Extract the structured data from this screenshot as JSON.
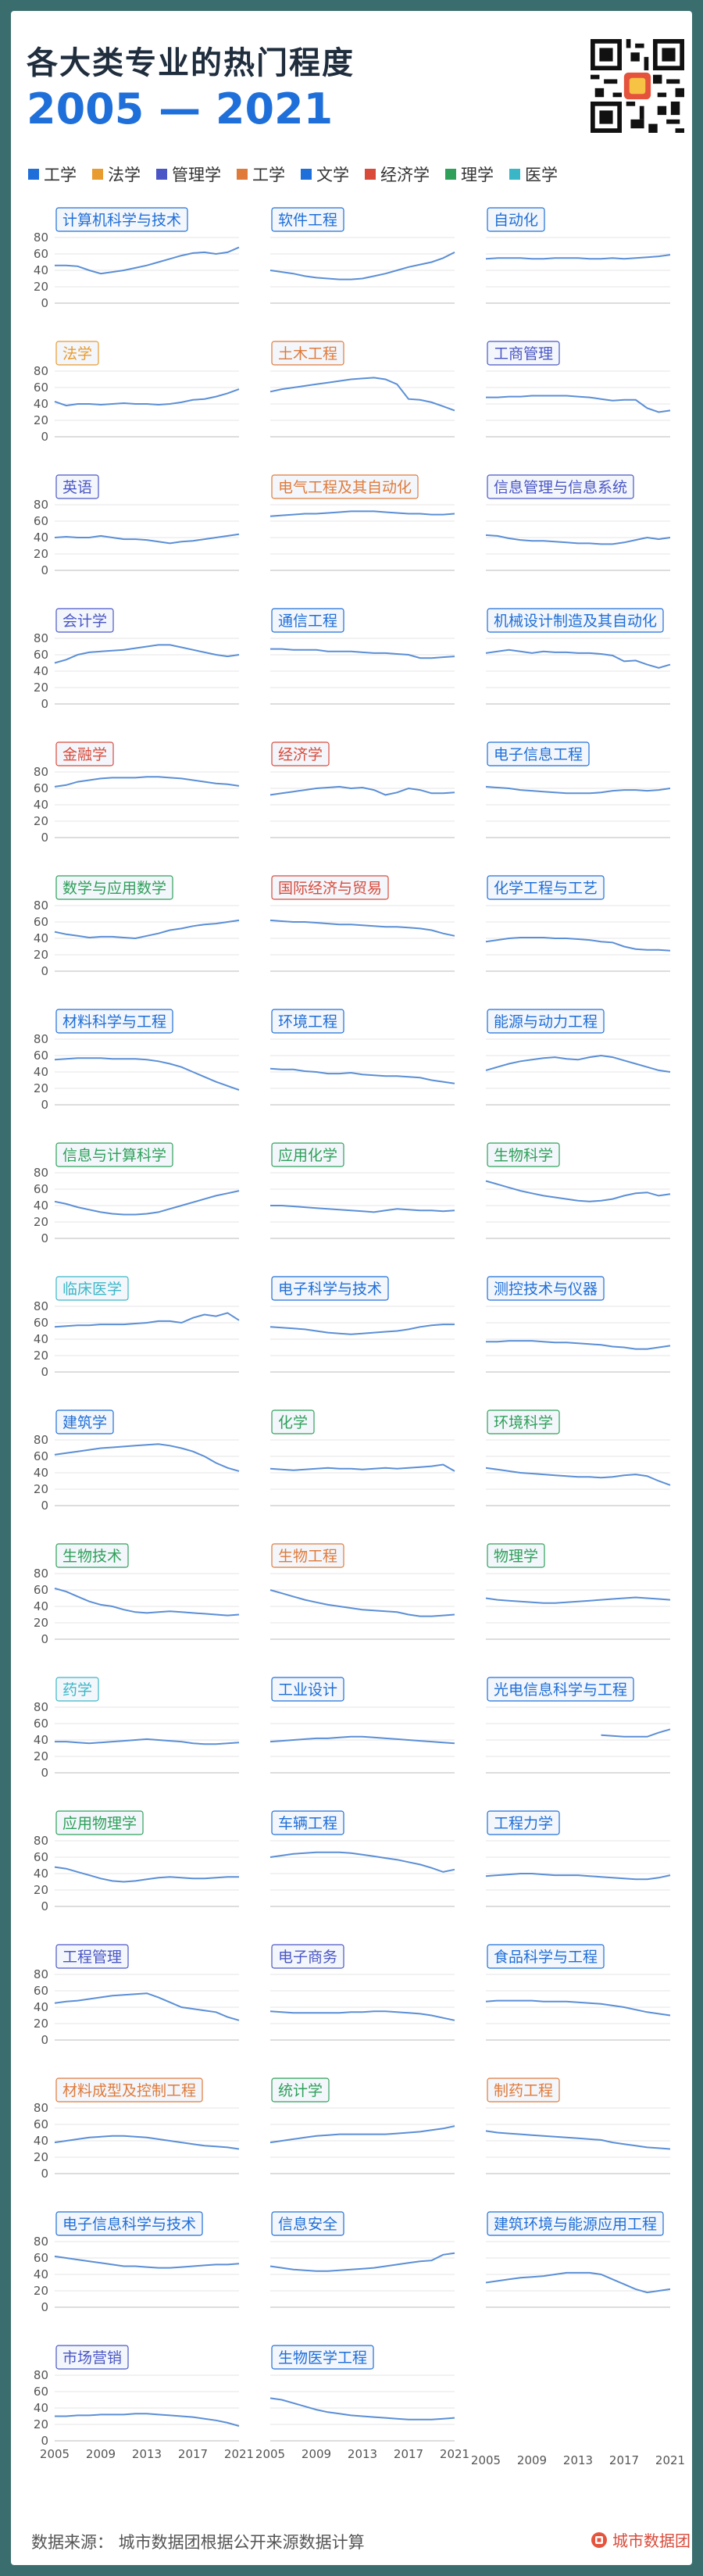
{
  "header": {
    "title": "各大类专业的热门程度",
    "years": "2005 — 2021"
  },
  "legend": [
    {
      "label": "工学",
      "color": "#1e6fd9"
    },
    {
      "label": "法学",
      "color": "#e89b2e"
    },
    {
      "label": "管理学",
      "color": "#4a56c6"
    },
    {
      "label": "工学",
      "color": "#e07a3a"
    },
    {
      "label": "文学",
      "color": "#1e6fd9"
    },
    {
      "label": "经济学",
      "color": "#d94a3a"
    },
    {
      "label": "理学",
      "color": "#2ea05a"
    },
    {
      "label": "医学",
      "color": "#3ab7c7"
    }
  ],
  "footer": {
    "source": "数据来源：  城市数据团根据公开来源数据计算",
    "brand": "城市数据团"
  },
  "chart_data": {
    "type": "line",
    "x": [
      2005,
      2006,
      2007,
      2008,
      2009,
      2010,
      2011,
      2012,
      2013,
      2014,
      2015,
      2016,
      2017,
      2018,
      2019,
      2020,
      2021
    ],
    "x_ticks": [
      "2005",
      "2009",
      "2013",
      "2017",
      "2021"
    ],
    "y_ticks": [
      "0",
      "20",
      "40",
      "60",
      "80"
    ],
    "ylim": [
      0,
      80
    ],
    "series": [
      {
        "name": "计算机科学与技术",
        "color": "#1e6fd9",
        "values": [
          46,
          46,
          45,
          40,
          36,
          38,
          40,
          43,
          46,
          50,
          54,
          58,
          61,
          62,
          60,
          62,
          68
        ]
      },
      {
        "name": "软件工程",
        "color": "#1e6fd9",
        "values": [
          40,
          38,
          36,
          33,
          31,
          30,
          29,
          29,
          30,
          33,
          36,
          40,
          44,
          47,
          50,
          55,
          62
        ]
      },
      {
        "name": "自动化",
        "color": "#1e6fd9",
        "values": [
          54,
          55,
          55,
          55,
          54,
          54,
          55,
          55,
          55,
          54,
          54,
          55,
          54,
          55,
          56,
          57,
          59
        ]
      },
      {
        "name": "法学",
        "color": "#e89b2e",
        "values": [
          43,
          38,
          40,
          40,
          39,
          40,
          41,
          40,
          40,
          39,
          40,
          42,
          45,
          46,
          49,
          53,
          58
        ]
      },
      {
        "name": "土木工程",
        "color": "#e07a3a",
        "values": [
          55,
          58,
          60,
          62,
          64,
          66,
          68,
          70,
          71,
          72,
          70,
          64,
          46,
          45,
          42,
          37,
          32
        ]
      },
      {
        "name": "工商管理",
        "color": "#4a56c6",
        "values": [
          48,
          48,
          49,
          49,
          50,
          50,
          50,
          50,
          49,
          48,
          46,
          44,
          45,
          45,
          35,
          30,
          32
        ]
      },
      {
        "name": "英语",
        "color": "#4a56c6",
        "values": [
          40,
          41,
          40,
          40,
          42,
          40,
          38,
          38,
          37,
          35,
          33,
          35,
          36,
          38,
          40,
          42,
          44
        ]
      },
      {
        "name": "电气工程及其自动化",
        "color": "#e07a3a",
        "values": [
          66,
          67,
          68,
          69,
          69,
          70,
          71,
          72,
          72,
          72,
          71,
          70,
          69,
          69,
          68,
          68,
          69
        ]
      },
      {
        "name": "信息管理与信息系统",
        "color": "#4a56c6",
        "values": [
          43,
          42,
          39,
          37,
          36,
          36,
          35,
          34,
          33,
          33,
          32,
          32,
          34,
          37,
          40,
          38,
          40
        ]
      },
      {
        "name": "会计学",
        "color": "#4a56c6",
        "values": [
          50,
          54,
          60,
          63,
          64,
          65,
          66,
          68,
          70,
          72,
          72,
          69,
          66,
          63,
          60,
          58,
          60
        ]
      },
      {
        "name": "通信工程",
        "color": "#1e6fd9",
        "values": [
          67,
          67,
          66,
          66,
          66,
          64,
          64,
          64,
          63,
          62,
          62,
          61,
          60,
          56,
          56,
          57,
          58
        ]
      },
      {
        "name": "机械设计制造及其自动化",
        "color": "#1e6fd9",
        "values": [
          62,
          64,
          66,
          64,
          62,
          64,
          63,
          63,
          62,
          62,
          61,
          59,
          52,
          53,
          48,
          44,
          48
        ]
      },
      {
        "name": "金融学",
        "color": "#d94a3a",
        "values": [
          62,
          64,
          68,
          70,
          72,
          73,
          73,
          73,
          74,
          74,
          73,
          72,
          70,
          68,
          66,
          65,
          63
        ]
      },
      {
        "name": "经济学",
        "color": "#d94a3a",
        "values": [
          52,
          54,
          56,
          58,
          60,
          61,
          62,
          60,
          61,
          58,
          52,
          55,
          60,
          58,
          54,
          54,
          55
        ]
      },
      {
        "name": "电子信息工程",
        "color": "#1e6fd9",
        "values": [
          62,
          61,
          60,
          58,
          57,
          56,
          55,
          54,
          54,
          54,
          55,
          57,
          58,
          58,
          57,
          58,
          60
        ]
      },
      {
        "name": "数学与应用数学",
        "color": "#2ea05a",
        "values": [
          48,
          45,
          43,
          41,
          42,
          42,
          41,
          40,
          43,
          46,
          50,
          52,
          55,
          57,
          58,
          60,
          62
        ]
      },
      {
        "name": "国际经济与贸易",
        "color": "#d94a3a",
        "values": [
          62,
          61,
          60,
          60,
          59,
          58,
          57,
          57,
          56,
          55,
          54,
          54,
          53,
          52,
          50,
          46,
          43
        ]
      },
      {
        "name": "化学工程与工艺",
        "color": "#1e6fd9",
        "values": [
          36,
          38,
          40,
          41,
          41,
          41,
          40,
          40,
          39,
          38,
          36,
          35,
          30,
          27,
          26,
          26,
          25
        ]
      },
      {
        "name": "材料科学与工程",
        "color": "#1e6fd9",
        "values": [
          55,
          56,
          57,
          57,
          57,
          56,
          56,
          56,
          55,
          53,
          50,
          46,
          40,
          34,
          28,
          23,
          18
        ]
      },
      {
        "name": "环境工程",
        "color": "#1e6fd9",
        "values": [
          44,
          43,
          43,
          41,
          40,
          38,
          38,
          39,
          37,
          36,
          35,
          35,
          34,
          33,
          30,
          28,
          26
        ]
      },
      {
        "name": "能源与动力工程",
        "color": "#1e6fd9",
        "values": [
          42,
          46,
          50,
          53,
          55,
          57,
          58,
          56,
          55,
          58,
          60,
          58,
          54,
          50,
          46,
          42,
          40
        ]
      },
      {
        "name": "信息与计算科学",
        "color": "#2ea05a",
        "values": [
          45,
          42,
          38,
          35,
          32,
          30,
          29,
          29,
          30,
          32,
          36,
          40,
          44,
          48,
          52,
          55,
          58
        ]
      },
      {
        "name": "应用化学",
        "color": "#2ea05a",
        "values": [
          40,
          40,
          39,
          38,
          37,
          36,
          35,
          34,
          33,
          32,
          34,
          36,
          35,
          34,
          34,
          33,
          34
        ]
      },
      {
        "name": "生物科学",
        "color": "#2ea05a",
        "values": [
          70,
          66,
          62,
          58,
          55,
          52,
          50,
          48,
          46,
          45,
          46,
          48,
          52,
          55,
          56,
          52,
          54
        ]
      },
      {
        "name": "临床医学",
        "color": "#3ab7c7",
        "values": [
          55,
          56,
          57,
          57,
          58,
          58,
          58,
          59,
          60,
          62,
          62,
          60,
          66,
          70,
          68,
          72,
          63
        ]
      },
      {
        "name": "电子科学与技术",
        "color": "#1e6fd9",
        "values": [
          55,
          54,
          53,
          52,
          50,
          48,
          47,
          46,
          47,
          48,
          49,
          50,
          52,
          55,
          57,
          58,
          58
        ]
      },
      {
        "name": "测控技术与仪器",
        "color": "#1e6fd9",
        "values": [
          37,
          37,
          38,
          38,
          38,
          37,
          36,
          36,
          35,
          34,
          33,
          31,
          30,
          28,
          28,
          30,
          32
        ]
      },
      {
        "name": "建筑学",
        "color": "#1e6fd9",
        "values": [
          62,
          64,
          66,
          68,
          70,
          71,
          72,
          73,
          74,
          75,
          73,
          70,
          66,
          60,
          52,
          46,
          42
        ]
      },
      {
        "name": "化学",
        "color": "#2ea05a",
        "values": [
          45,
          44,
          43,
          44,
          45,
          46,
          45,
          45,
          44,
          45,
          46,
          45,
          46,
          47,
          48,
          50,
          42
        ]
      },
      {
        "name": "环境科学",
        "color": "#2ea05a",
        "values": [
          46,
          44,
          42,
          40,
          39,
          38,
          37,
          36,
          35,
          35,
          34,
          35,
          37,
          38,
          36,
          30,
          25
        ]
      },
      {
        "name": "生物技术",
        "color": "#2ea05a",
        "values": [
          62,
          58,
          52,
          46,
          42,
          40,
          36,
          33,
          32,
          33,
          34,
          33,
          32,
          31,
          30,
          29,
          30
        ]
      },
      {
        "name": "生物工程",
        "color": "#e07a3a",
        "values": [
          60,
          56,
          52,
          48,
          45,
          42,
          40,
          38,
          36,
          35,
          34,
          33,
          30,
          28,
          28,
          29,
          30
        ]
      },
      {
        "name": "物理学",
        "color": "#2ea05a",
        "values": [
          50,
          48,
          47,
          46,
          45,
          44,
          44,
          45,
          46,
          47,
          48,
          49,
          50,
          51,
          50,
          49,
          48
        ]
      },
      {
        "name": "药学",
        "color": "#3ab7c7",
        "values": [
          38,
          38,
          37,
          36,
          37,
          38,
          39,
          40,
          41,
          40,
          39,
          38,
          36,
          35,
          35,
          36,
          37
        ]
      },
      {
        "name": "工业设计",
        "color": "#1e6fd9",
        "values": [
          38,
          39,
          40,
          41,
          42,
          42,
          43,
          44,
          44,
          43,
          42,
          41,
          40,
          39,
          38,
          37,
          36
        ]
      },
      {
        "name": "光电信息科学与工程",
        "color": "#1e6fd9",
        "values": [
          null,
          null,
          null,
          null,
          null,
          null,
          null,
          null,
          null,
          null,
          46,
          45,
          44,
          44,
          44,
          49,
          53
        ]
      },
      {
        "name": "应用物理学",
        "color": "#2ea05a",
        "values": [
          48,
          46,
          42,
          38,
          34,
          31,
          30,
          31,
          33,
          35,
          36,
          35,
          34,
          34,
          35,
          36,
          36
        ]
      },
      {
        "name": "车辆工程",
        "color": "#1e6fd9",
        "values": [
          60,
          62,
          64,
          65,
          66,
          66,
          66,
          65,
          63,
          61,
          59,
          57,
          54,
          51,
          47,
          42,
          45
        ]
      },
      {
        "name": "工程力学",
        "color": "#1e6fd9",
        "values": [
          37,
          38,
          39,
          40,
          40,
          39,
          38,
          38,
          38,
          37,
          36,
          35,
          34,
          33,
          33,
          35,
          38
        ]
      },
      {
        "name": "工程管理",
        "color": "#4a56c6",
        "values": [
          45,
          47,
          48,
          50,
          52,
          54,
          55,
          56,
          57,
          52,
          46,
          40,
          38,
          36,
          34,
          28,
          24
        ]
      },
      {
        "name": "电子商务",
        "color": "#4a56c6",
        "values": [
          35,
          34,
          33,
          33,
          33,
          33,
          33,
          34,
          34,
          35,
          35,
          34,
          33,
          32,
          30,
          27,
          24
        ]
      },
      {
        "name": "食品科学与工程",
        "color": "#1e6fd9",
        "values": [
          47,
          48,
          48,
          48,
          48,
          47,
          47,
          47,
          46,
          45,
          44,
          42,
          40,
          37,
          34,
          32,
          30
        ]
      },
      {
        "name": "材料成型及控制工程",
        "color": "#e07a3a",
        "values": [
          38,
          40,
          42,
          44,
          45,
          46,
          46,
          45,
          44,
          42,
          40,
          38,
          36,
          34,
          33,
          32,
          30
        ]
      },
      {
        "name": "统计学",
        "color": "#2ea05a",
        "values": [
          38,
          40,
          42,
          44,
          46,
          47,
          48,
          48,
          48,
          48,
          48,
          49,
          50,
          51,
          53,
          55,
          58
        ]
      },
      {
        "name": "制药工程",
        "color": "#e07a3a",
        "values": [
          52,
          50,
          49,
          48,
          47,
          46,
          45,
          44,
          43,
          42,
          41,
          38,
          36,
          34,
          32,
          31,
          30
        ]
      },
      {
        "name": "电子信息科学与技术",
        "color": "#1e6fd9",
        "values": [
          62,
          60,
          58,
          56,
          54,
          52,
          50,
          50,
          49,
          48,
          48,
          49,
          50,
          51,
          52,
          52,
          53
        ]
      },
      {
        "name": "信息安全",
        "color": "#1e6fd9",
        "values": [
          50,
          48,
          46,
          45,
          44,
          44,
          45,
          46,
          47,
          48,
          50,
          52,
          54,
          56,
          57,
          64,
          66
        ]
      },
      {
        "name": "建筑环境与能源应用工程",
        "color": "#1e6fd9",
        "values": [
          30,
          32,
          34,
          36,
          37,
          38,
          40,
          42,
          42,
          42,
          40,
          34,
          28,
          22,
          18,
          20,
          22
        ]
      },
      {
        "name": "市场营销",
        "color": "#4a56c6",
        "values": [
          30,
          30,
          31,
          31,
          32,
          32,
          32,
          33,
          33,
          32,
          31,
          30,
          29,
          27,
          25,
          22,
          18
        ]
      },
      {
        "name": "生物医学工程",
        "color": "#1e6fd9",
        "values": [
          52,
          50,
          46,
          42,
          38,
          35,
          33,
          31,
          30,
          29,
          28,
          27,
          26,
          26,
          26,
          27,
          28
        ]
      }
    ]
  }
}
